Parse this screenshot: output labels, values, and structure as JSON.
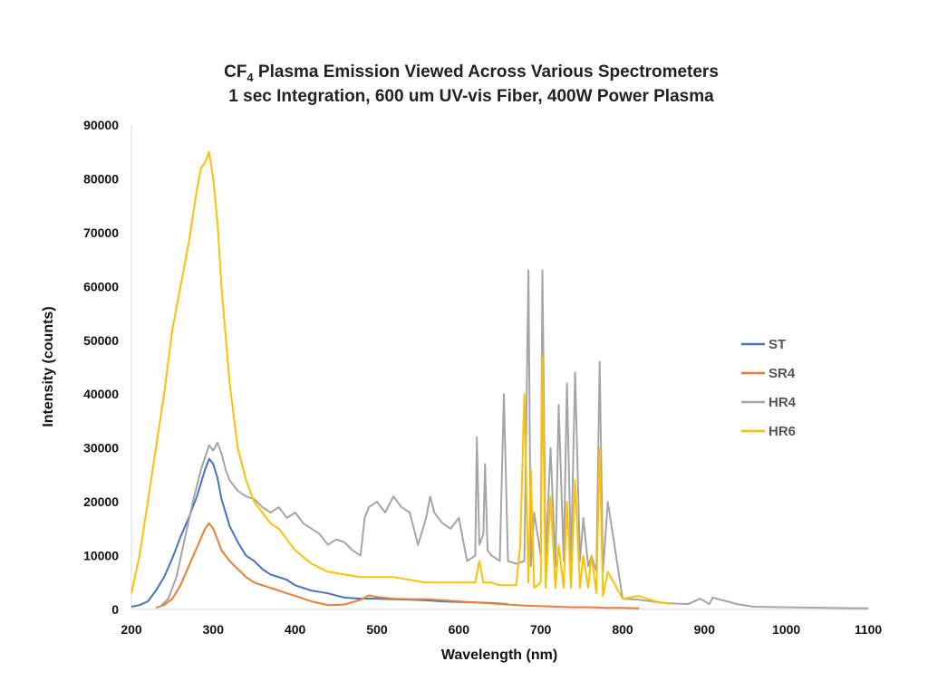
{
  "chart_data": {
    "type": "line",
    "title_main": "CF",
    "title_sub": "4",
    "title_rest": " Plasma Emission Viewed Across Various Spectrometers",
    "subtitle": "1 sec Integration, 600 um UV-vis Fiber, 400W Power Plasma",
    "xlabel": "Wavelength (nm)",
    "ylabel": "Intensity (counts)",
    "xlim": [
      200,
      1100
    ],
    "ylim": [
      0,
      90000
    ],
    "x_ticks": [
      "200",
      "300",
      "400",
      "500",
      "600",
      "700",
      "800",
      "900",
      "1000",
      "1100"
    ],
    "y_ticks": [
      "0",
      "10000",
      "20000",
      "30000",
      "40000",
      "50000",
      "60000",
      "70000",
      "80000",
      "90000"
    ],
    "grid": false,
    "legend_position": "right",
    "series": [
      {
        "name": "ST",
        "color": "#4472C4",
        "x": [
          200,
          210,
          220,
          230,
          240,
          250,
          260,
          270,
          280,
          290,
          295,
          300,
          305,
          310,
          320,
          330,
          340,
          350,
          360,
          370,
          380,
          390,
          400,
          420,
          440,
          460,
          480,
          500,
          520,
          540,
          560,
          580,
          600,
          620,
          640,
          660
        ],
        "y": [
          500,
          800,
          1500,
          3500,
          6000,
          9500,
          13500,
          17000,
          21000,
          26000,
          28000,
          27000,
          24500,
          20500,
          15500,
          12500,
          10000,
          9000,
          7500,
          6500,
          6000,
          5500,
          4500,
          3500,
          3000,
          2200,
          2000,
          2000,
          1900,
          1800,
          1700,
          1500,
          1400,
          1300,
          1200,
          1000
        ]
      },
      {
        "name": "SR4",
        "color": "#ED7D31",
        "x": [
          230,
          240,
          250,
          260,
          270,
          280,
          290,
          295,
          300,
          305,
          310,
          320,
          330,
          340,
          350,
          360,
          370,
          380,
          390,
          400,
          420,
          440,
          460,
          480,
          490,
          500,
          520,
          540,
          560,
          580,
          600,
          620,
          640,
          660,
          680,
          700,
          720,
          740,
          760,
          780,
          800,
          820
        ],
        "y": [
          300,
          800,
          2000,
          4500,
          8000,
          11500,
          15000,
          16000,
          15000,
          13000,
          11000,
          9000,
          7500,
          6000,
          5000,
          4500,
          4000,
          3500,
          3000,
          2500,
          1500,
          800,
          900,
          1800,
          2600,
          2300,
          2000,
          1900,
          1900,
          1700,
          1500,
          1300,
          1100,
          900,
          700,
          600,
          500,
          400,
          400,
          300,
          300,
          200
        ]
      },
      {
        "name": "HR4",
        "color": "#A5A5A5",
        "x": [
          235,
          245,
          255,
          265,
          275,
          285,
          295,
          300,
          305,
          310,
          315,
          320,
          330,
          340,
          350,
          360,
          370,
          380,
          390,
          400,
          410,
          420,
          430,
          440,
          450,
          460,
          470,
          480,
          485,
          490,
          500,
          510,
          520,
          530,
          540,
          550,
          560,
          565,
          570,
          580,
          590,
          600,
          610,
          620,
          622,
          625,
          630,
          632,
          635,
          640,
          650,
          655,
          660,
          670,
          680,
          685,
          688,
          692,
          700,
          702,
          706,
          712,
          718,
          722,
          728,
          732,
          737,
          742,
          748,
          752,
          758,
          762,
          768,
          772,
          776,
          782,
          800,
          820,
          850,
          880,
          895,
          906,
          910,
          940,
          960,
          1000,
          1050,
          1100
        ],
        "y": [
          500,
          2000,
          6000,
          13000,
          20000,
          26000,
          30500,
          29500,
          31000,
          29000,
          26000,
          24000,
          22000,
          21000,
          20500,
          19000,
          18000,
          19000,
          17000,
          18000,
          16000,
          15000,
          14000,
          12000,
          13000,
          12500,
          11000,
          10000,
          17000,
          19000,
          20000,
          18000,
          21000,
          19000,
          18000,
          12000,
          17000,
          21000,
          18000,
          16000,
          15000,
          17000,
          9000,
          10000,
          32000,
          12000,
          14000,
          27000,
          11000,
          10000,
          9000,
          40000,
          9000,
          8500,
          9000,
          63000,
          8000,
          18000,
          10000,
          63000,
          9000,
          30000,
          8000,
          38000,
          9000,
          42000,
          9000,
          44000,
          9000,
          17000,
          8000,
          10000,
          7000,
          46000,
          7000,
          20000,
          2000,
          1800,
          1200,
          1000,
          2000,
          1000,
          2200,
          1000,
          500,
          400,
          300,
          200
        ]
      },
      {
        "name": "HR6",
        "color": "#FFC000",
        "x": [
          200,
          210,
          220,
          230,
          240,
          250,
          260,
          270,
          280,
          285,
          290,
          295,
          300,
          305,
          310,
          320,
          330,
          340,
          350,
          360,
          370,
          380,
          390,
          400,
          420,
          440,
          460,
          480,
          500,
          520,
          540,
          560,
          580,
          600,
          620,
          625,
          630,
          640,
          650,
          660,
          670,
          675,
          680,
          685,
          688,
          692,
          700,
          702,
          706,
          712,
          718,
          722,
          728,
          732,
          737,
          742,
          748,
          752,
          758,
          762,
          768,
          772,
          776,
          782,
          800,
          820,
          840,
          860
        ],
        "y": [
          3000,
          10000,
          20000,
          30000,
          40000,
          52000,
          60000,
          68000,
          78000,
          82000,
          83000,
          85000,
          80000,
          72000,
          60000,
          42000,
          30000,
          24000,
          20000,
          18000,
          16000,
          15000,
          13000,
          11000,
          8500,
          7000,
          6500,
          6000,
          6000,
          6000,
          5500,
          5000,
          5000,
          5000,
          5000,
          9000,
          5000,
          5000,
          4500,
          4500,
          4500,
          12000,
          40000,
          5000,
          26000,
          4000,
          5000,
          47000,
          4000,
          21000,
          4000,
          12000,
          4000,
          20000,
          4000,
          24000,
          4000,
          10000,
          4000,
          10000,
          3000,
          30000,
          2500,
          7000,
          2000,
          2500,
          1500,
          1000
        ]
      }
    ]
  }
}
